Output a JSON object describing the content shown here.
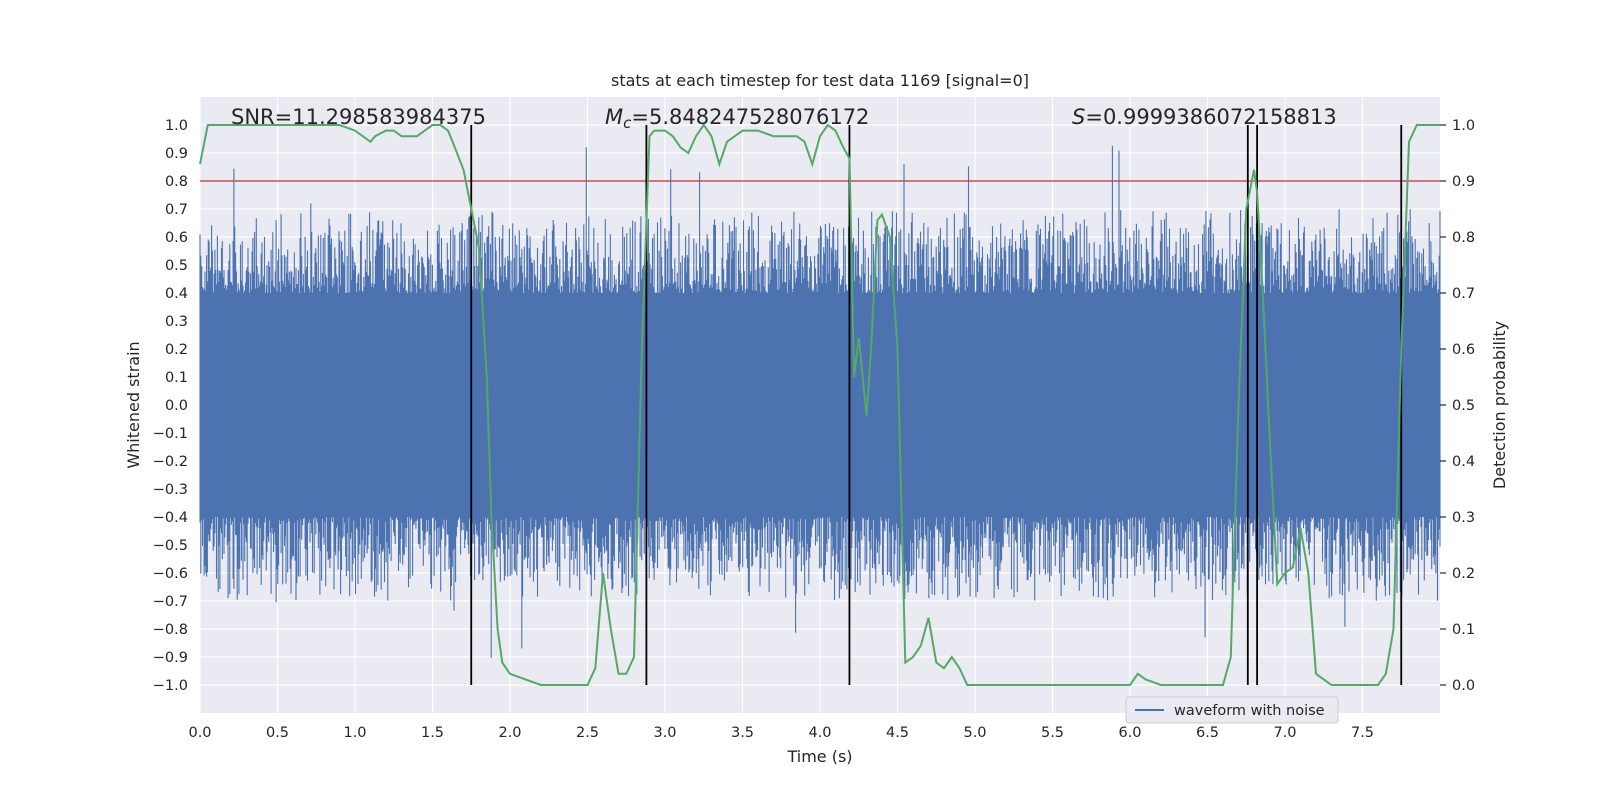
{
  "chart_data": {
    "type": "line",
    "title": "stats at each timestep for test data 1169 [signal=0]",
    "xlabel": "Time (s)",
    "ylabel": "Whitened strain",
    "y2label": "Detection probability",
    "xlim": [
      0.0,
      8.0
    ],
    "ylim": [
      -1.1,
      1.1
    ],
    "y2lim": [
      -0.05,
      1.05
    ],
    "xticks": [
      "0.0",
      "0.5",
      "1.0",
      "1.5",
      "2.0",
      "2.5",
      "3.0",
      "3.5",
      "4.0",
      "4.5",
      "5.0",
      "5.5",
      "6.0",
      "6.5",
      "7.0",
      "7.5"
    ],
    "xtick_values": [
      0.0,
      0.5,
      1.0,
      1.5,
      2.0,
      2.5,
      3.0,
      3.5,
      4.0,
      4.5,
      5.0,
      5.5,
      6.0,
      6.5,
      7.0,
      7.5
    ],
    "yticks": [
      "1.0",
      "0.9",
      "0.8",
      "0.7",
      "0.6",
      "0.5",
      "0.4",
      "0.3",
      "0.2",
      "0.1",
      "0.0",
      "−0.1",
      "−0.2",
      "−0.3",
      "−0.4",
      "−0.5",
      "−0.6",
      "−0.7",
      "−0.8",
      "−0.9",
      "−1.0"
    ],
    "ytick_values": [
      1.0,
      0.9,
      0.8,
      0.7,
      0.6,
      0.5,
      0.4,
      0.3,
      0.2,
      0.1,
      0.0,
      -0.1,
      -0.2,
      -0.3,
      -0.4,
      -0.5,
      -0.6,
      -0.7,
      -0.8,
      -0.9,
      -1.0
    ],
    "y2ticks": [
      "1.0",
      "0.9",
      "0.8",
      "0.7",
      "0.6",
      "0.5",
      "0.4",
      "0.3",
      "0.2",
      "0.1",
      "0.0"
    ],
    "y2tick_values": [
      1.0,
      0.9,
      0.8,
      0.7,
      0.6,
      0.5,
      0.4,
      0.3,
      0.2,
      0.1,
      0.0
    ],
    "annotations": {
      "snr_text": "SNR=11.298583984375",
      "mc_symbol": "M",
      "mc_subscript": "c",
      "mc_value": "=5.848247528076172",
      "s_symbol": "S",
      "s_value": "=0.9999386072158813"
    },
    "threshold": {
      "value": 0.8,
      "axis": "left",
      "color": "#c44e52"
    },
    "vertical_lines": [
      1.75,
      2.88,
      4.19,
      6.76,
      6.82,
      7.75
    ],
    "legend": {
      "label": "waveform with noise",
      "placement": "lower-right"
    },
    "waveform": {
      "name": "waveform with noise",
      "color": "#4c72b0",
      "t_start": 0.0,
      "t_end": 8.0,
      "samples": 1500,
      "core_amplitude": 0.4,
      "typical_peak": 0.6,
      "max_peak": 0.93
    },
    "probability_series": {
      "name": "Detection probability",
      "color": "#55a868",
      "axis": "right",
      "x": [
        0.0,
        0.05,
        0.1,
        0.2,
        0.3,
        0.4,
        0.5,
        0.6,
        0.7,
        0.8,
        0.9,
        1.0,
        1.05,
        1.1,
        1.13,
        1.2,
        1.25,
        1.3,
        1.4,
        1.45,
        1.5,
        1.55,
        1.6,
        1.63,
        1.7,
        1.75,
        1.8,
        1.85,
        1.88,
        1.92,
        1.95,
        2.0,
        2.1,
        2.2,
        2.3,
        2.4,
        2.5,
        2.55,
        2.6,
        2.65,
        2.7,
        2.75,
        2.8,
        2.85,
        2.9,
        2.93,
        3.0,
        3.05,
        3.1,
        3.15,
        3.2,
        3.25,
        3.3,
        3.35,
        3.4,
        3.5,
        3.6,
        3.7,
        3.8,
        3.85,
        3.9,
        3.95,
        4.0,
        4.05,
        4.1,
        4.15,
        4.19,
        4.22,
        4.25,
        4.3,
        4.33,
        4.37,
        4.4,
        4.45,
        4.5,
        4.55,
        4.6,
        4.65,
        4.7,
        4.75,
        4.8,
        4.85,
        4.9,
        4.95,
        5.0,
        5.1,
        5.2,
        5.3,
        5.4,
        5.5,
        5.55,
        5.6,
        5.7,
        5.8,
        5.9,
        6.0,
        6.05,
        6.1,
        6.2,
        6.3,
        6.4,
        6.5,
        6.6,
        6.65,
        6.7,
        6.75,
        6.8,
        6.82,
        6.86,
        6.9,
        6.95,
        7.0,
        7.05,
        7.1,
        7.15,
        7.2,
        7.3,
        7.4,
        7.5,
        7.6,
        7.65,
        7.7,
        7.75,
        7.8,
        7.85,
        7.9,
        7.95,
        8.0
      ],
      "y": [
        0.93,
        1.0,
        1.0,
        1.0,
        1.0,
        1.0,
        1.0,
        1.0,
        1.0,
        1.0,
        1.0,
        0.99,
        0.98,
        0.97,
        0.98,
        0.99,
        0.99,
        0.98,
        0.98,
        0.99,
        1.0,
        1.0,
        0.99,
        0.97,
        0.92,
        0.85,
        0.78,
        0.55,
        0.3,
        0.1,
        0.04,
        0.02,
        0.01,
        0.0,
        0.0,
        0.0,
        0.0,
        0.03,
        0.2,
        0.1,
        0.02,
        0.02,
        0.05,
        0.6,
        0.98,
        0.99,
        0.99,
        0.98,
        0.96,
        0.95,
        0.98,
        1.0,
        0.98,
        0.93,
        0.97,
        0.99,
        0.99,
        0.98,
        0.98,
        0.98,
        0.97,
        0.93,
        0.98,
        1.0,
        0.99,
        0.96,
        0.94,
        0.55,
        0.62,
        0.48,
        0.6,
        0.83,
        0.84,
        0.8,
        0.6,
        0.04,
        0.05,
        0.07,
        0.12,
        0.04,
        0.03,
        0.05,
        0.03,
        0.0,
        0.0,
        0.0,
        0.0,
        0.0,
        0.0,
        0.0,
        0.0,
        0.0,
        0.0,
        0.0,
        0.0,
        0.0,
        0.02,
        0.01,
        0.0,
        0.0,
        0.0,
        0.0,
        0.0,
        0.05,
        0.5,
        0.85,
        0.92,
        0.88,
        0.68,
        0.45,
        0.18,
        0.2,
        0.21,
        0.28,
        0.2,
        0.02,
        0.0,
        0.0,
        0.0,
        0.0,
        0.02,
        0.1,
        0.6,
        0.97,
        1.0,
        1.0,
        1.0,
        1.0
      ]
    }
  }
}
